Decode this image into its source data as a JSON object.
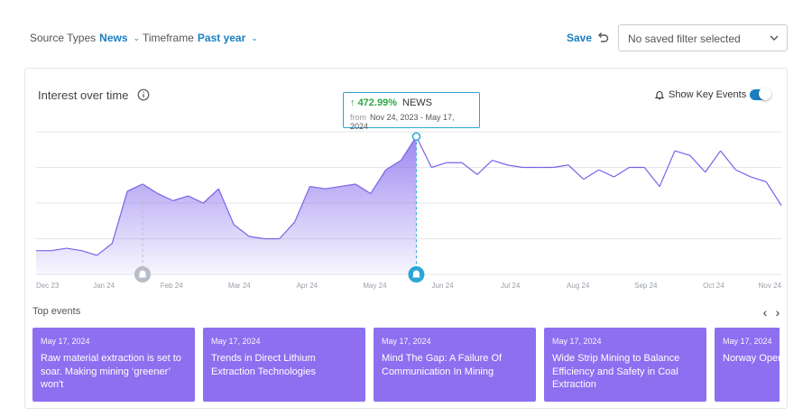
{
  "filters": {
    "source_label": "Source Types",
    "source_value": "News",
    "timeframe_label": "Timeframe",
    "timeframe_value": "Past year"
  },
  "toolbar": {
    "save_label": "Save",
    "saved_filter_value": "No saved filter selected"
  },
  "card": {
    "title": "Interest over time",
    "key_events_label": "Show Key Events",
    "key_events_on": true
  },
  "tooltip": {
    "change": "472.99%",
    "category": "NEWS",
    "from_label": "from",
    "range": "Nov 24, 2023 - May 17, 2024"
  },
  "chart_data": {
    "type": "area",
    "x_ticks": [
      "Dec 23",
      "Jan 24",
      "Feb 24",
      "Mar 24",
      "Apr 24",
      "May 24",
      "Jun 24",
      "Jul 24",
      "Aug 24",
      "Sep 24",
      "Oct 24",
      "Nov 24"
    ],
    "values": [
      10,
      10,
      11,
      10,
      8,
      13,
      35,
      38,
      34,
      31,
      33,
      30,
      36,
      21,
      16,
      15,
      15,
      22,
      37,
      36,
      37,
      38,
      34,
      44,
      48,
      58,
      45,
      47,
      47,
      42,
      48,
      46,
      45,
      45,
      45,
      46,
      40,
      44,
      41,
      45,
      45,
      37,
      52,
      50,
      43,
      52,
      44,
      41,
      39,
      29
    ],
    "ylim": [
      0,
      60
    ],
    "highlight_range_end_index": 25,
    "key_event_indices": [
      7,
      25
    ],
    "grid": true,
    "colors": {
      "line": "#7b61e8",
      "fill": "#8b73ee",
      "accent": "#2aa6d4"
    }
  },
  "events_section": {
    "label": "Top events",
    "prev_icon": "chevron-left-icon",
    "next_icon": "chevron-right-icon"
  },
  "events": [
    {
      "date": "May 17, 2024",
      "title": "Raw material extraction is set to soar. Making mining ‘greener’ won't"
    },
    {
      "date": "May 17, 2024",
      "title": "Trends in Direct Lithium Extraction Technologies"
    },
    {
      "date": "May 17, 2024",
      "title": "Mind The Gap: A Failure Of Communication In Mining"
    },
    {
      "date": "May 17, 2024",
      "title": "Wide Strip Mining to Balance Efficiency and Safety in Coal Extraction"
    },
    {
      "date": "May 17, 2024",
      "title": "Norway Opens Deep-Sea Mining"
    }
  ]
}
